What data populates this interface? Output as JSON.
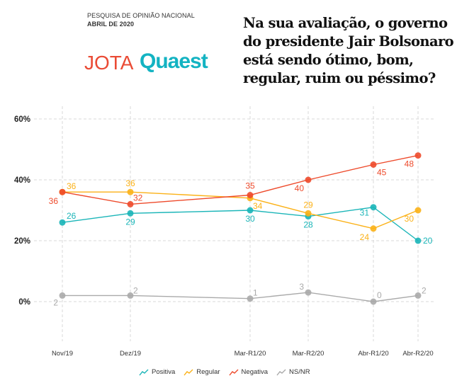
{
  "header": {
    "kicker_line1": "PESQUISA DE OPINIÃO NACIONAL",
    "kicker_line2": "ABRIL DE 2020",
    "logo_left": "JOTA",
    "logo_right": "Quaest",
    "question": "Na sua avaliação, o governo do presidente Jair Bolsonaro está sendo ótimo, bom, regular, ruim ou péssimo?"
  },
  "chart_data": {
    "type": "line",
    "title": "Na sua avaliação, o governo do presidente Jair Bolsonaro está sendo ótimo, bom, regular, ruim ou péssimo?",
    "xlabel": "",
    "ylabel": "",
    "categories": [
      "Nov/19",
      "Dez/19",
      "Mar-R1/20",
      "Mar-R2/20",
      "Abr-R1/20",
      "Abr-R2/20"
    ],
    "y_ticks": [
      "0%",
      "20%",
      "40%",
      "60%"
    ],
    "ylim": [
      -15,
      60
    ],
    "grid": true,
    "legend_position": "bottom",
    "series": [
      {
        "name": "Positiva",
        "color": "#1ab5b8",
        "values": [
          26,
          29,
          30,
          28,
          31,
          20
        ]
      },
      {
        "name": "Regular",
        "color": "#fbb117",
        "values": [
          36,
          36,
          34,
          29,
          24,
          30
        ]
      },
      {
        "name": "Negativa",
        "color": "#ee4a2b",
        "values": [
          36,
          32,
          35,
          40,
          45,
          48
        ]
      },
      {
        "name": "NS/NR",
        "color": "#aaaaaa",
        "values": [
          2,
          2,
          1,
          3,
          0,
          2
        ]
      }
    ]
  }
}
